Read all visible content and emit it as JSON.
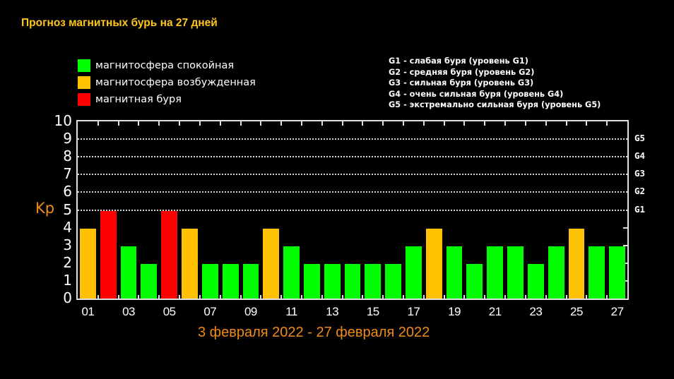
{
  "header": {
    "title": "Прогноз магнитных бурь на 27 дней"
  },
  "legend": {
    "items": [
      {
        "label": "магнитосфера спокойная",
        "color": "#00ff00"
      },
      {
        "label": "магнитосфера возбужденная",
        "color": "#ffc000"
      },
      {
        "label": "магнитная буря",
        "color": "#ff0000"
      }
    ]
  },
  "storm_levels": {
    "lines": [
      "G1 - слабая буря (уровень G1)",
      "G2 - средняя буря (уровень G2)",
      "G3 - сильная буря (уровень G3)",
      "G4 - очень сильная буря (уровень G4)",
      "G5 - экстремально сильная буря (уровень G5)"
    ]
  },
  "axis": {
    "ylabel": "Kp",
    "yticks": [
      "0",
      "1",
      "2",
      "3",
      "4",
      "5",
      "6",
      "7",
      "8",
      "9",
      "10"
    ],
    "gticks": [
      {
        "label": "G1",
        "kp": 5
      },
      {
        "label": "G2",
        "kp": 6
      },
      {
        "label": "G3",
        "kp": 7
      },
      {
        "label": "G4",
        "kp": 8
      },
      {
        "label": "G5",
        "kp": 9
      }
    ],
    "xticks": [
      "01",
      "03",
      "05",
      "07",
      "09",
      "11",
      "13",
      "15",
      "17",
      "19",
      "21",
      "23",
      "25",
      "27"
    ],
    "date_range": "3 февраля 2022 - 27 февраля 2022"
  },
  "colors": {
    "quiet": "#00ff00",
    "active": "#ffc000",
    "storm": "#ff0000",
    "title": "#ffc61a",
    "accent": "#f08a1a"
  },
  "chart_data": {
    "type": "bar",
    "title": "Прогноз магнитных бурь на 27 дней",
    "subtitle": "3 февраля 2022 - 27 февраля 2022",
    "xlabel": "",
    "ylabel": "Kp",
    "ylim": [
      0,
      10
    ],
    "grid": true,
    "legend_position": "top-left",
    "categories": [
      "01",
      "02",
      "03",
      "04",
      "05",
      "06",
      "07",
      "08",
      "09",
      "10",
      "11",
      "12",
      "13",
      "14",
      "15",
      "16",
      "17",
      "18",
      "19",
      "20",
      "21",
      "22",
      "23",
      "24",
      "25",
      "26",
      "27"
    ],
    "values": [
      4,
      5,
      3,
      2,
      5,
      4,
      2,
      2,
      2,
      4,
      3,
      2,
      2,
      2,
      2,
      2,
      3,
      4,
      3,
      2,
      3,
      3,
      2,
      3,
      4,
      3,
      3
    ],
    "bar_status": [
      "active",
      "storm",
      "quiet",
      "quiet",
      "storm",
      "active",
      "quiet",
      "quiet",
      "quiet",
      "active",
      "quiet",
      "quiet",
      "quiet",
      "quiet",
      "quiet",
      "quiet",
      "quiet",
      "active",
      "quiet",
      "quiet",
      "quiet",
      "quiet",
      "quiet",
      "quiet",
      "active",
      "quiet",
      "quiet"
    ],
    "secondary_axis": {
      "G1": 5,
      "G2": 6,
      "G3": 7,
      "G4": 8,
      "G5": 9
    }
  }
}
